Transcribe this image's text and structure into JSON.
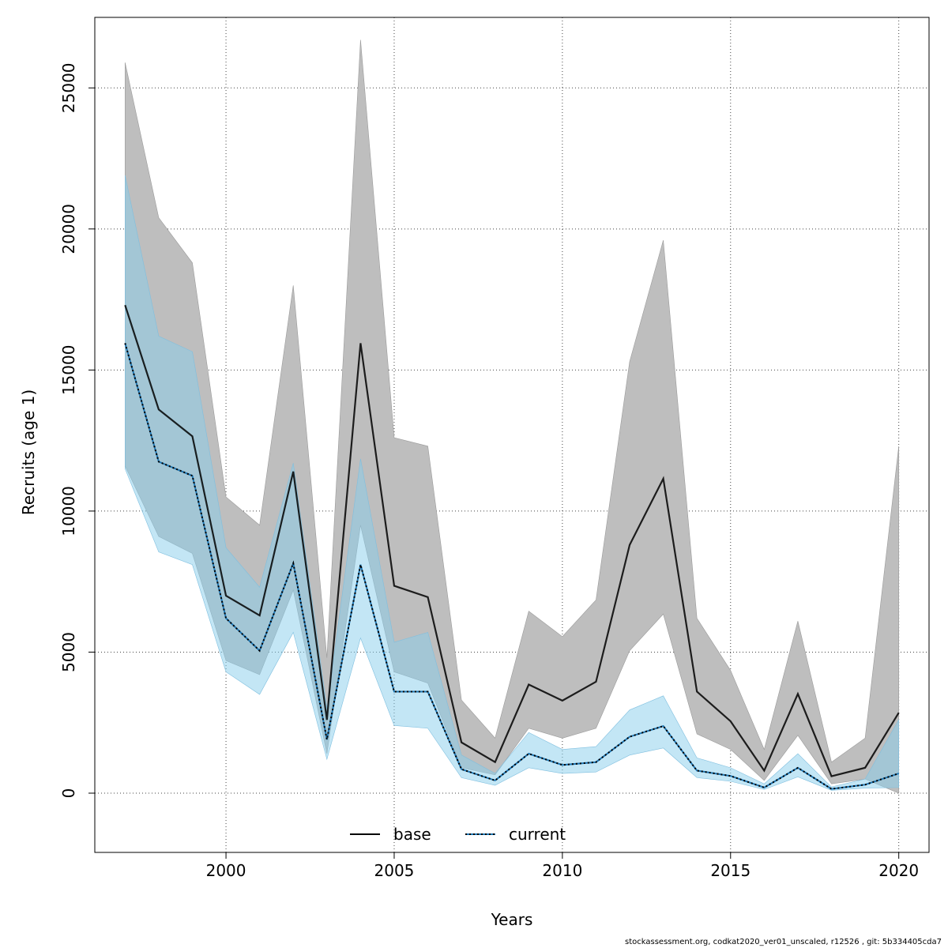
{
  "footer": "stockassessment.org, codkat2020_ver01_unscaled, r12526 , git: 5b334405cda7",
  "chart_data": {
    "type": "line",
    "xlabel": "Years",
    "ylabel": "Recruits (age 1)",
    "xlim": [
      1996.1,
      2020.9
    ],
    "ylim": [
      -2100,
      27500
    ],
    "grid": true,
    "legend_position": "bottom",
    "x_ticks": [
      2000,
      2005,
      2010,
      2015,
      2020
    ],
    "y_ticks": [
      0,
      5000,
      10000,
      15000,
      20000,
      25000
    ],
    "x": [
      1997,
      1998,
      1999,
      2000,
      2001,
      2002,
      2003,
      2004,
      2005,
      2006,
      2007,
      2008,
      2009,
      2010,
      2011,
      2012,
      2013,
      2014,
      2015,
      2016,
      2017,
      2018,
      2019,
      2020
    ],
    "series": [
      {
        "name": "base",
        "line_style": "solid",
        "line_color": "#000000",
        "band_color": "#bebebe",
        "values": [
          17300,
          13600,
          12650,
          7000,
          6300,
          11400,
          2600,
          15950,
          7350,
          6950,
          1800,
          1100,
          3850,
          3280,
          3950,
          8800,
          11150,
          3600,
          2550,
          800,
          3520,
          600,
          900,
          2850
        ],
        "lower": [
          11600,
          9100,
          8500,
          4700,
          4200,
          7200,
          1400,
          9500,
          4300,
          3900,
          900,
          650,
          2300,
          1950,
          2300,
          5050,
          6350,
          2100,
          1550,
          450,
          2050,
          330,
          500,
          0
        ],
        "upper": [
          25900,
          20400,
          18800,
          10500,
          9500,
          18000,
          4800,
          26700,
          12600,
          12300,
          3300,
          1950,
          6450,
          5550,
          6850,
          15300,
          19600,
          6200,
          4350,
          1550,
          6100,
          1100,
          1950,
          12300
        ]
      },
      {
        "name": "current",
        "line_style": "dotted",
        "line_color": "#1f77b4",
        "band_color": "#87ceeb",
        "values": [
          15950,
          11750,
          11250,
          6200,
          5050,
          8150,
          1900,
          8100,
          3600,
          3600,
          850,
          450,
          1400,
          1000,
          1100,
          2000,
          2380,
          800,
          610,
          200,
          900,
          150,
          300,
          700
        ],
        "lower": [
          11500,
          8550,
          8100,
          4300,
          3500,
          5700,
          1200,
          5500,
          2400,
          2300,
          550,
          280,
          900,
          700,
          750,
          1350,
          1600,
          550,
          420,
          130,
          580,
          100,
          180,
          200
        ],
        "upper": [
          21900,
          16200,
          15650,
          8700,
          7300,
          11700,
          3000,
          11850,
          5350,
          5700,
          1350,
          700,
          2150,
          1550,
          1650,
          2950,
          3450,
          1250,
          900,
          330,
          1400,
          220,
          500,
          2600
        ]
      }
    ]
  }
}
